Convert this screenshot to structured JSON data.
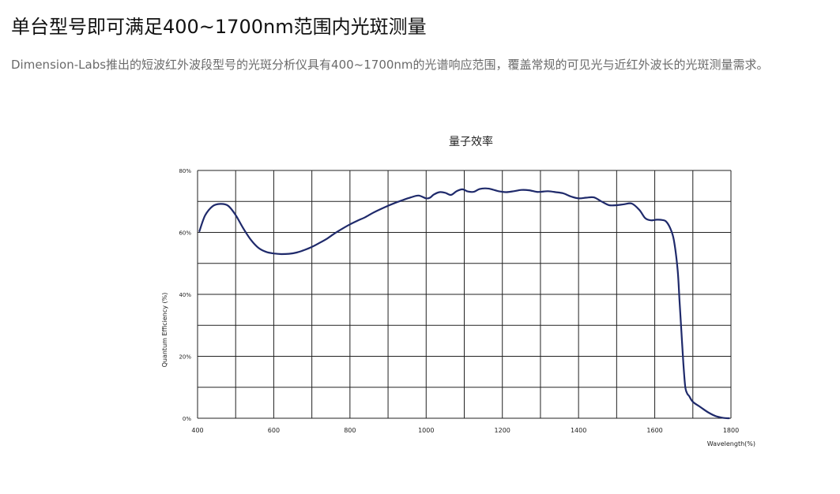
{
  "page": {
    "title": "单台型号即可满足400~1700nm范围内光斑测量",
    "subtitle": "Dimension-Labs推出的短波红外波段型号的光斑分析仪具有400~1700nm的光谱响应范围，覆盖常规的可见光与近红外波长的光斑测量需求。"
  },
  "chart_data": {
    "type": "line",
    "title": "量子效率",
    "xlabel": "Wavelength(%)",
    "ylabel": "Quantum Efficiency (%)",
    "xlim": [
      400,
      1800
    ],
    "ylim": [
      0,
      80
    ],
    "x_ticks": [
      "400",
      "600",
      "800",
      "1000",
      "1200",
      "1400",
      "1600",
      "1800"
    ],
    "y_ticks": [
      "0%",
      "20%",
      "40%",
      "60%",
      "80%"
    ],
    "grid": true,
    "x_grid_step": 100,
    "y_grid_step": 10,
    "line_color": "#1f2a6b",
    "grid_color": "#222222",
    "series": [
      {
        "x": [
          405,
          420,
          440,
          460,
          480,
          500,
          520,
          540,
          560,
          580,
          600,
          620,
          640,
          660,
          680,
          700,
          720,
          740,
          760,
          780,
          800,
          820,
          840,
          860,
          880,
          900,
          920,
          940,
          960,
          980,
          1000,
          1010,
          1020,
          1035,
          1050,
          1065,
          1080,
          1095,
          1110,
          1125,
          1140,
          1160,
          1175,
          1190,
          1210,
          1230,
          1250,
          1270,
          1290,
          1300,
          1320,
          1340,
          1360,
          1380,
          1400,
          1420,
          1440,
          1460,
          1480,
          1500,
          1520,
          1540,
          1560,
          1575,
          1590,
          1605,
          1620,
          1630,
          1640,
          1650,
          1660,
          1665,
          1670,
          1675,
          1680,
          1685,
          1690,
          1700,
          1720,
          1740,
          1760,
          1780,
          1795
        ],
        "y": [
          60.4,
          65.5,
          68.5,
          69.2,
          68.6,
          65.6,
          61.3,
          57.6,
          55.0,
          53.7,
          53.2,
          53.0,
          53.1,
          53.5,
          54.3,
          55.3,
          56.6,
          58.0,
          59.7,
          61.2,
          62.6,
          63.8,
          64.9,
          66.3,
          67.5,
          68.6,
          69.6,
          70.5,
          71.3,
          71.9,
          71.0,
          71.2,
          72.2,
          73.0,
          72.8,
          72.1,
          73.3,
          73.9,
          73.2,
          73.1,
          74.0,
          74.2,
          73.8,
          73.3,
          73.0,
          73.3,
          73.7,
          73.6,
          73.1,
          73.1,
          73.3,
          73.0,
          72.6,
          71.6,
          71.0,
          71.2,
          71.3,
          70.0,
          68.8,
          68.8,
          69.1,
          69.3,
          67.2,
          64.6,
          63.9,
          64.1,
          64.0,
          63.5,
          61.5,
          57.6,
          48.0,
          38.0,
          28.0,
          18.0,
          10.3,
          8.0,
          7.2,
          5.3,
          3.6,
          1.9,
          0.7,
          0.1,
          0.0
        ]
      }
    ]
  }
}
